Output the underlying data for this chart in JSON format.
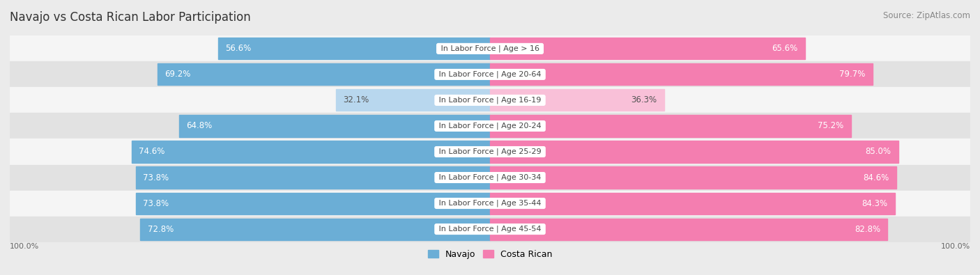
{
  "title": "Navajo vs Costa Rican Labor Participation",
  "source": "Source: ZipAtlas.com",
  "categories": [
    "In Labor Force | Age > 16",
    "In Labor Force | Age 20-64",
    "In Labor Force | Age 16-19",
    "In Labor Force | Age 20-24",
    "In Labor Force | Age 25-29",
    "In Labor Force | Age 30-34",
    "In Labor Force | Age 35-44",
    "In Labor Force | Age 45-54"
  ],
  "navajo_values": [
    56.6,
    69.2,
    32.1,
    64.8,
    74.6,
    73.8,
    73.8,
    72.8
  ],
  "costa_rican_values": [
    65.6,
    79.7,
    36.3,
    75.2,
    85.0,
    84.6,
    84.3,
    82.8
  ],
  "navajo_color": "#6BAED6",
  "navajo_color_light": "#B8D7EE",
  "costa_rican_color": "#F47EB0",
  "costa_rican_color_light": "#F9C0D8",
  "label_white": "#ffffff",
  "label_dark": "#555555",
  "bg_color": "#ebebeb",
  "row_bg_even": "#f5f5f5",
  "row_bg_odd": "#e2e2e2",
  "title_color": "#333333",
  "source_color": "#888888",
  "category_label_color": "#444444",
  "axis_label_color": "#666666",
  "legend_navajo": "Navajo",
  "legend_costa_rican": "Costa Rican",
  "title_fontsize": 12,
  "source_fontsize": 8.5,
  "bar_label_fontsize": 8.5,
  "category_fontsize": 8,
  "legend_fontsize": 9,
  "axis_label_fontsize": 8,
  "max_val": 100
}
